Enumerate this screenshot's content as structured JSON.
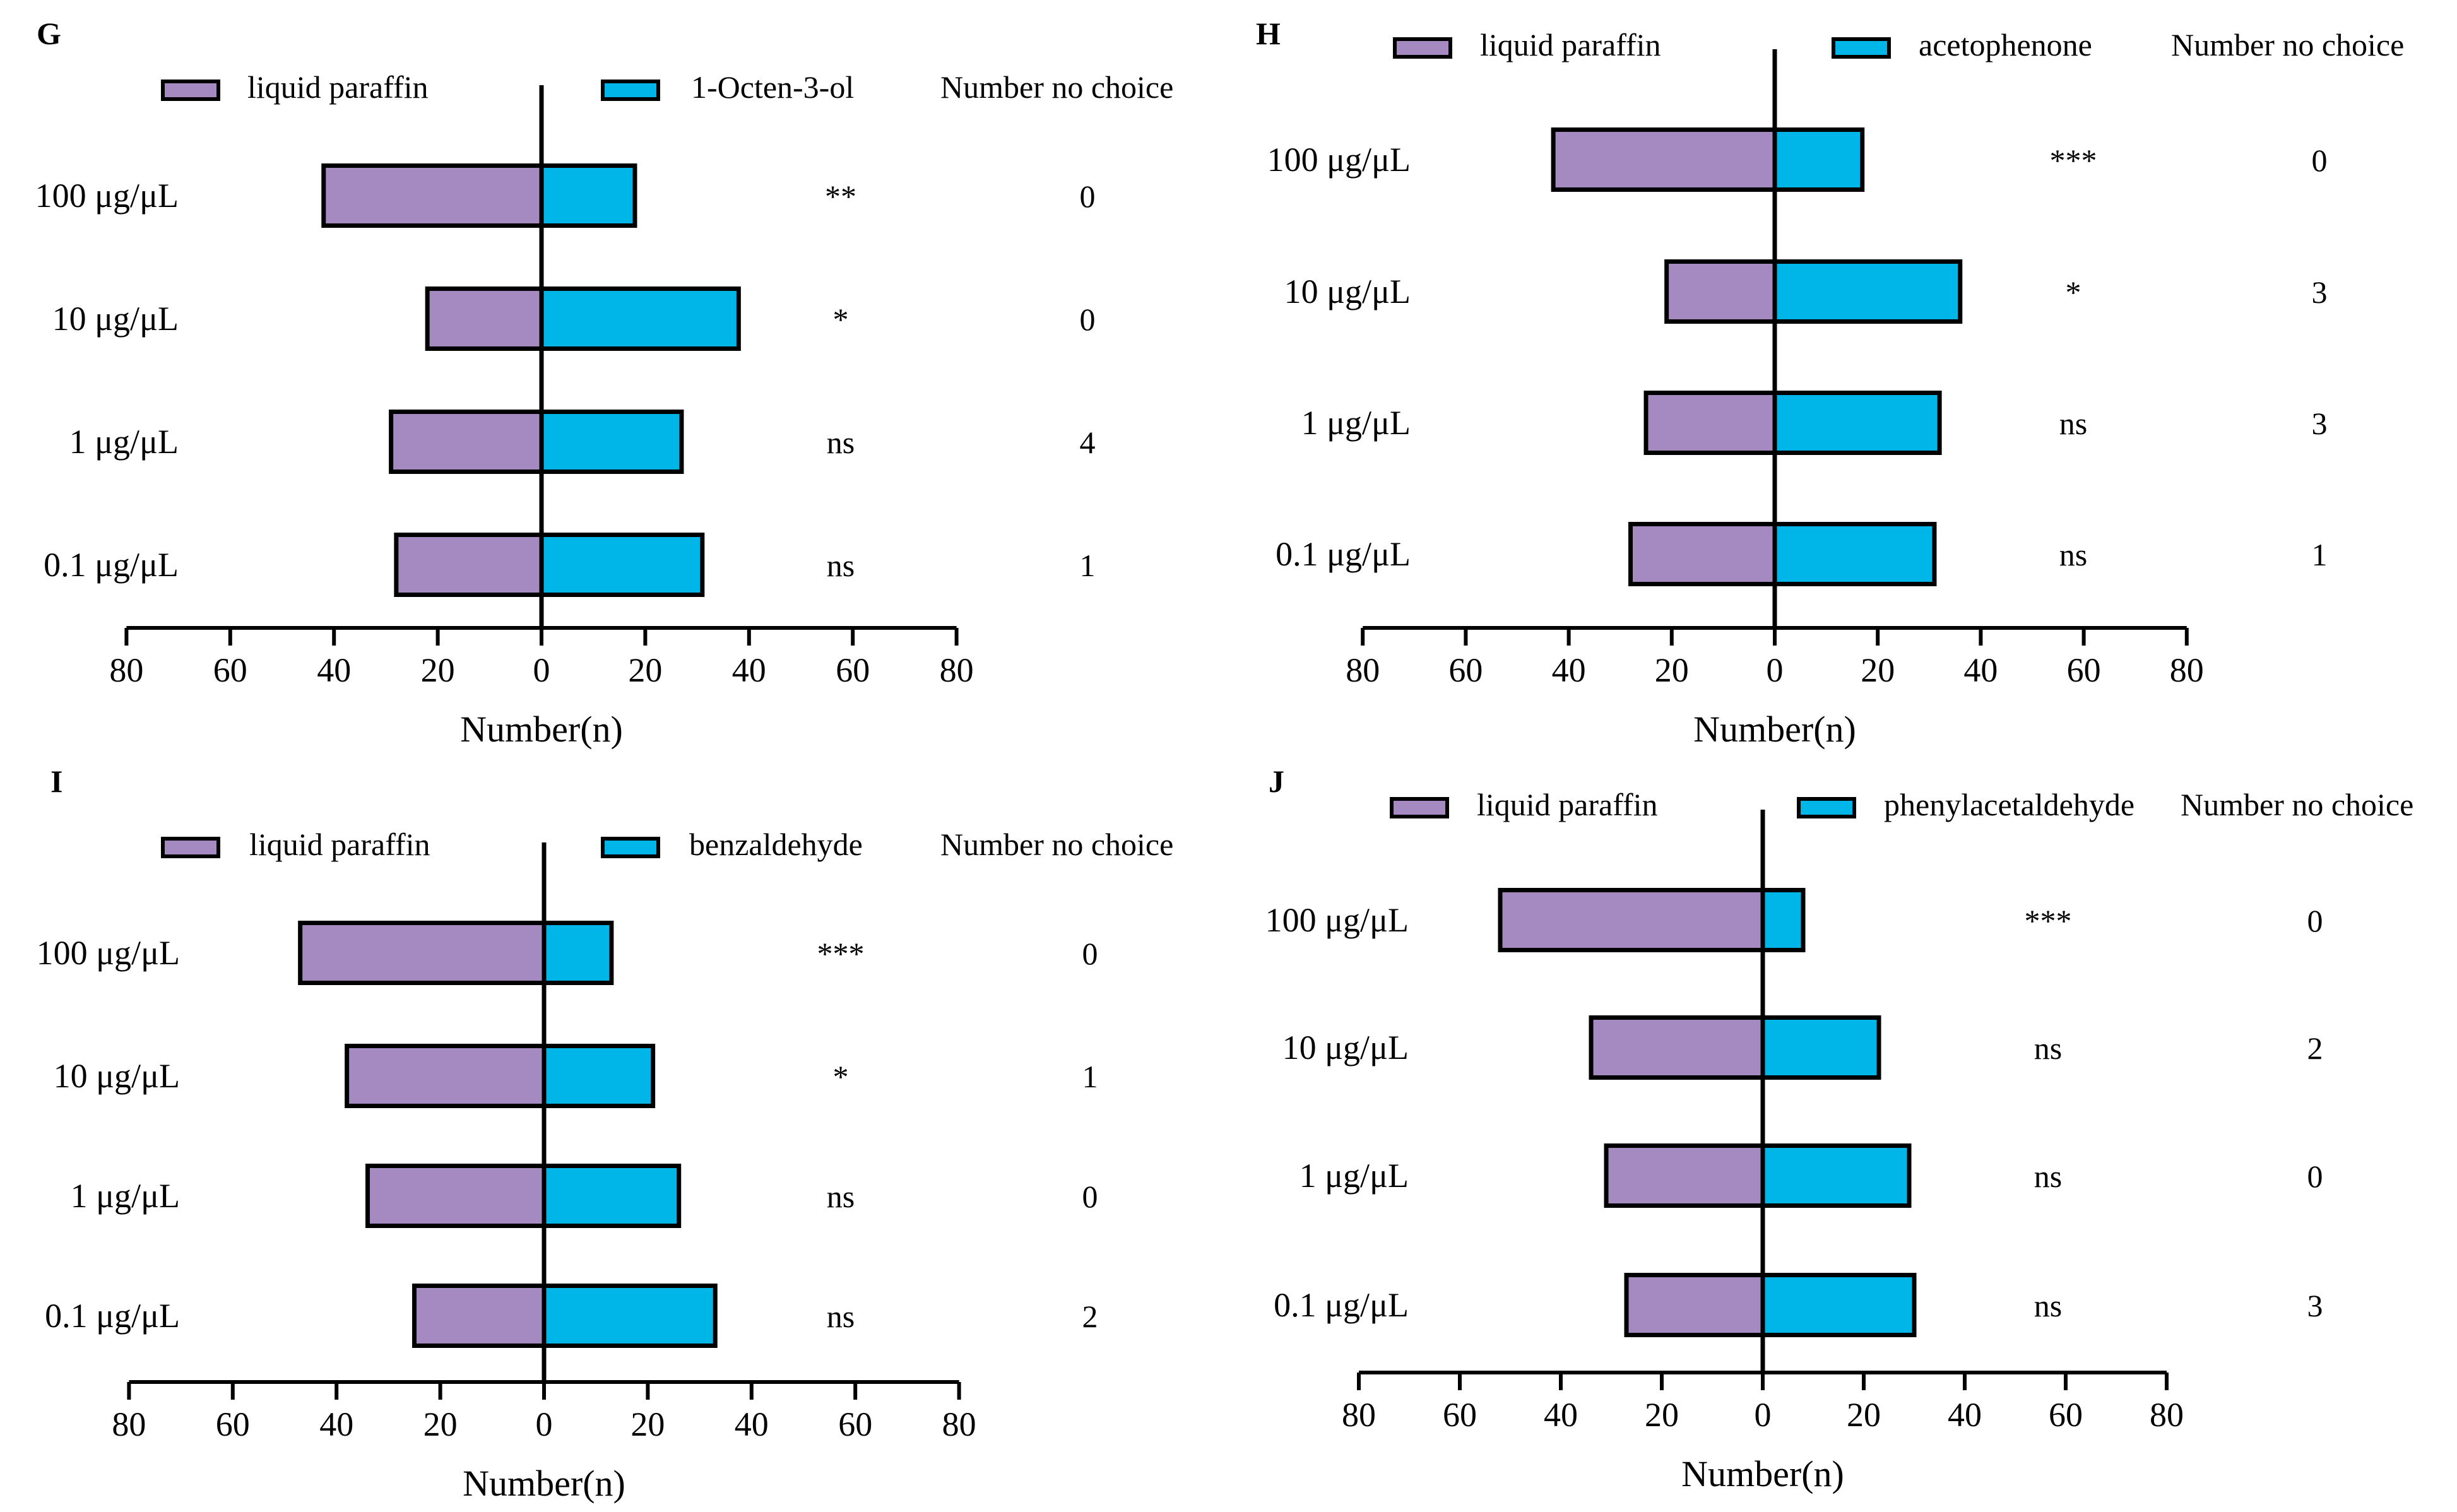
{
  "shared": {
    "axis_title": "Number(n)",
    "no_choice_header": "Number no choice",
    "tick_labels": [
      "80",
      "60",
      "40",
      "20",
      "0",
      "20",
      "40",
      "60",
      "80"
    ],
    "colors": {
      "left_series": "#a58ac2",
      "right_series": "#00b5e8",
      "stroke": "#000000"
    }
  },
  "chart_data": [
    {
      "panel": "G",
      "type": "bar",
      "orientation": "horizontal-diverging",
      "categories": [
        "100 μg/μL",
        "10 μg/μL",
        "1 μg/μL",
        "0.1 μg/μL"
      ],
      "series": [
        {
          "name": "liquid paraffin",
          "values": [
            42,
            22,
            29,
            28
          ]
        },
        {
          "name": "1-Octen-3-ol",
          "values": [
            18,
            38,
            27,
            31
          ]
        }
      ],
      "significance": [
        "**",
        "*",
        "ns",
        "ns"
      ],
      "no_choice": [
        "0",
        "0",
        "4",
        "1"
      ],
      "xlabel": "Number(n)",
      "xlim": [
        -80,
        80
      ]
    },
    {
      "panel": "H",
      "type": "bar",
      "orientation": "horizontal-diverging",
      "categories": [
        "100 μg/μL",
        "10 μg/μL",
        "1 μg/μL",
        "0.1 μg/μL"
      ],
      "series": [
        {
          "name": "liquid paraffin",
          "values": [
            43,
            21,
            25,
            28
          ]
        },
        {
          "name": "acetophenone",
          "values": [
            17,
            36,
            32,
            31
          ]
        }
      ],
      "significance": [
        "***",
        "*",
        "ns",
        "ns"
      ],
      "no_choice": [
        "0",
        "3",
        "3",
        "1"
      ],
      "xlabel": "Number(n)",
      "xlim": [
        -80,
        80
      ]
    },
    {
      "panel": "I",
      "type": "bar",
      "orientation": "horizontal-diverging",
      "categories": [
        "100 μg/μL",
        "10 μg/μL",
        "1 μg/μL",
        "0.1 μg/μL"
      ],
      "series": [
        {
          "name": "liquid paraffin",
          "values": [
            47,
            38,
            34,
            25
          ]
        },
        {
          "name": "benzaldehyde",
          "values": [
            13,
            21,
            26,
            33
          ]
        }
      ],
      "significance": [
        "***",
        "*",
        "ns",
        "ns"
      ],
      "no_choice": [
        "0",
        "1",
        "0",
        "2"
      ],
      "xlabel": "Number(n)",
      "xlim": [
        -80,
        80
      ]
    },
    {
      "panel": "J",
      "type": "bar",
      "orientation": "horizontal-diverging",
      "categories": [
        "100 μg/μL",
        "10 μg/μL",
        "1 μg/μL",
        "0.1 μg/μL"
      ],
      "series": [
        {
          "name": "liquid paraffin",
          "values": [
            52,
            34,
            31,
            27
          ]
        },
        {
          "name": "phenylacetaldehyde",
          "values": [
            8,
            23,
            29,
            30
          ]
        }
      ],
      "significance": [
        "***",
        "ns",
        "ns",
        "ns"
      ],
      "no_choice": [
        "0",
        "2",
        "0",
        "3"
      ],
      "xlabel": "Number(n)",
      "xlim": [
        -80,
        80
      ]
    }
  ]
}
